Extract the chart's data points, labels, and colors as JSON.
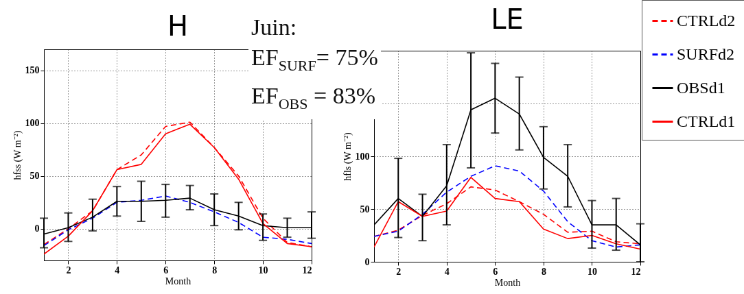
{
  "chart_data": [
    {
      "type": "line",
      "title": "H",
      "xlabel": "Month",
      "ylabel": "hfss (W m⁻²)",
      "x": [
        1,
        2,
        3,
        4,
        5,
        6,
        7,
        8,
        9,
        10,
        11,
        12
      ],
      "xlim": [
        1,
        12
      ],
      "xticks": [
        2,
        4,
        6,
        8,
        10,
        12
      ],
      "ylim": [
        -30,
        170
      ],
      "yticks": [
        0,
        50,
        100,
        150
      ],
      "grid": true,
      "annotations": [
        "Juin:",
        "EF$_{SURF}$= 75%",
        "EF$_{OBS}$ = 83%"
      ],
      "series": [
        {
          "color": "#ff0000",
          "line_style": "dashed",
          "values": [
            -15,
            0,
            17,
            56,
            70,
            97,
            101,
            77,
            50,
            10,
            -13,
            -17
          ]
        },
        {
          "color": "#0000ff",
          "line_style": "dashed",
          "values": [
            -16,
            -1,
            10,
            25,
            27,
            31,
            25,
            16,
            6,
            -8,
            -10,
            -14
          ]
        },
        {
          "color": "#000000",
          "line_style": "solid",
          "values": [
            -5,
            1,
            11,
            26,
            26,
            27,
            29,
            18,
            12,
            3,
            1,
            1
          ],
          "errors": [
            [
              -18,
              10
            ],
            [
              -12,
              15
            ],
            [
              -2,
              28
            ],
            [
              12,
              40
            ],
            [
              7,
              45
            ],
            [
              11,
              42
            ],
            [
              18,
              41
            ],
            [
              3,
              33
            ],
            [
              -1,
              25
            ],
            [
              -11,
              14
            ],
            [
              -8,
              10
            ],
            [
              -9,
              16
            ]
          ]
        },
        {
          "color": "#ff0000",
          "line_style": "solid",
          "values": [
            -24,
            -7,
            17,
            56,
            61,
            90,
            99,
            77,
            47,
            5,
            -14,
            -17
          ]
        }
      ]
    },
    {
      "type": "line",
      "title": "LE",
      "xlabel": "Month",
      "ylabel": "hfls (W m⁻²)",
      "x": [
        1,
        2,
        3,
        4,
        5,
        6,
        7,
        8,
        9,
        10,
        11,
        12
      ],
      "xlim": [
        1,
        12
      ],
      "xticks": [
        2,
        4,
        6,
        8,
        10,
        12
      ],
      "ylim": [
        0,
        200
      ],
      "yticks": [
        0,
        50,
        100,
        {
          "value": 150,
          "label": null
        }
      ],
      "grid": true,
      "legend": "top right",
      "series": [
        {
          "name": "CTRLd2",
          "color": "#ff0000",
          "line_style": "dashed",
          "values": [
            24,
            30,
            44,
            55,
            71,
            68,
            57,
            45,
            28,
            29,
            19,
            17
          ]
        },
        {
          "name": "SURFd2",
          "color": "#0000ff",
          "line_style": "dashed",
          "values": [
            24,
            29,
            45,
            66,
            81,
            91,
            86,
            67,
            38,
            20,
            14,
            16
          ]
        },
        {
          "name": "OBSd1",
          "color": "#000000",
          "line_style": "solid",
          "values": [
            35,
            60,
            43,
            72,
            144,
            155,
            140,
            99,
            81,
            35,
            35,
            16
          ],
          "errors": [
            null,
            [
              23,
              98
            ],
            [
              20,
              64
            ],
            [
              35,
              111
            ],
            [
              89,
              198
            ],
            [
              122,
              188
            ],
            [
              106,
              175
            ],
            [
              69,
              128
            ],
            [
              52,
              111
            ],
            [
              13,
              58
            ],
            [
              11,
              60
            ],
            [
              0,
              36
            ]
          ]
        },
        {
          "name": "CTRLd1",
          "color": "#ff0000",
          "line_style": "solid",
          "values": [
            14,
            57,
            43,
            48,
            80,
            60,
            57,
            31,
            22,
            25,
            17,
            12
          ]
        }
      ]
    }
  ]
}
